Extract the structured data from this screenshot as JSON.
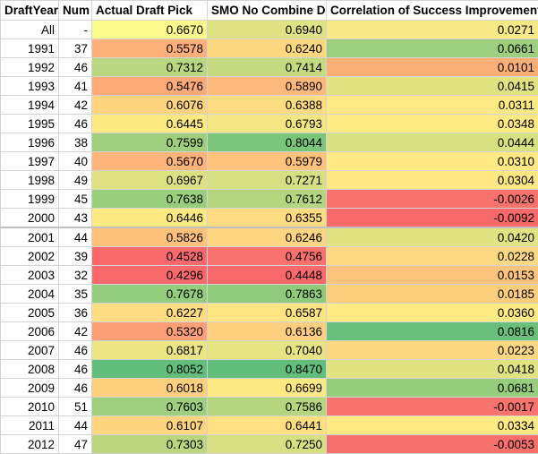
{
  "headers": [
    "DraftYear",
    "Num",
    "Actual Draft Pick",
    "SMO No Combine Data",
    "Correlation of Success Improvement"
  ],
  "rows": [
    {
      "year": "All",
      "num": "-",
      "actual": "0.6670",
      "smo": "0.6940",
      "corr": "0.0271",
      "c_actual": "#fcf98b",
      "c_smo": "#dfe383",
      "c_corr": "#f6e884"
    },
    {
      "year": "1991",
      "num": "37",
      "actual": "0.5578",
      "smo": "0.6240",
      "corr": "0.0661",
      "c_actual": "#fdaf79",
      "c_smo": "#fed880",
      "c_corr": "#9cd07e"
    },
    {
      "year": "1992",
      "num": "46",
      "actual": "0.7312",
      "smo": "0.7414",
      "corr": "0.0101",
      "c_actual": "#b9d780",
      "c_smo": "#c5da81",
      "c_corr": "#fcae79"
    },
    {
      "year": "1993",
      "num": "41",
      "actual": "0.5476",
      "smo": "0.5890",
      "corr": "0.0415",
      "c_actual": "#fcaa78",
      "c_smo": "#fcb97b",
      "c_corr": "#e1e383"
    },
    {
      "year": "1994",
      "num": "42",
      "actual": "0.6076",
      "smo": "0.6388",
      "corr": "0.0311",
      "c_actual": "#fed47f",
      "c_smo": "#fedc81",
      "c_corr": "#fdea84"
    },
    {
      "year": "1995",
      "num": "46",
      "actual": "0.6445",
      "smo": "0.6793",
      "corr": "0.0348",
      "c_actual": "#fde982",
      "c_smo": "#f4e783",
      "c_corr": "#feea83"
    },
    {
      "year": "1996",
      "num": "38",
      "actual": "0.7599",
      "smo": "0.8044",
      "corr": "0.0444",
      "c_actual": "#9dcf7e",
      "c_smo": "#7bc67b",
      "c_corr": "#d8e082"
    },
    {
      "year": "1997",
      "num": "40",
      "actual": "0.5670",
      "smo": "0.5979",
      "corr": "0.0310",
      "c_actual": "#fdb47a",
      "c_smo": "#fdc27c",
      "c_corr": "#ffe984"
    },
    {
      "year": "1998",
      "num": "49",
      "actual": "0.6967",
      "smo": "0.7271",
      "corr": "0.0304",
      "c_actual": "#dde182",
      "c_smo": "#d6df82",
      "c_corr": "#ffe883"
    },
    {
      "year": "1999",
      "num": "45",
      "actual": "0.7638",
      "smo": "0.7612",
      "corr": "-0.0026",
      "c_actual": "#99ce7d",
      "c_smo": "#b3d67f",
      "c_corr": "#f8736c"
    },
    {
      "year": "2000",
      "num": "43",
      "actual": "0.6446",
      "smo": "0.6355",
      "corr": "-0.0092",
      "c_actual": "#fde982",
      "c_smo": "#fedc81",
      "c_corr": "#f8696b"
    },
    {
      "year": "2001",
      "num": "44",
      "actual": "0.5826",
      "smo": "0.6246",
      "corr": "0.0420",
      "c_actual": "#fdc17c",
      "c_smo": "#fed580",
      "c_corr": "#e1e383"
    },
    {
      "year": "2002",
      "num": "39",
      "actual": "0.4528",
      "smo": "0.4756",
      "corr": "0.0228",
      "c_actual": "#f8696b",
      "c_smo": "#f9716d",
      "c_corr": "#fed981"
    },
    {
      "year": "2003",
      "num": "32",
      "actual": "0.4296",
      "smo": "0.4448",
      "corr": "0.0153",
      "c_actual": "#f8696b",
      "c_smo": "#f8696b",
      "c_corr": "#fdc47d"
    },
    {
      "year": "2004",
      "num": "35",
      "actual": "0.7678",
      "smo": "0.7863",
      "corr": "0.0185",
      "c_actual": "#94cd7d",
      "c_smo": "#90cb7c",
      "c_corr": "#fdcd7e"
    },
    {
      "year": "2005",
      "num": "36",
      "actual": "0.6227",
      "smo": "0.6587",
      "corr": "0.0360",
      "c_actual": "#fedc81",
      "c_smo": "#fee583",
      "c_corr": "#feea83"
    },
    {
      "year": "2006",
      "num": "42",
      "actual": "0.5320",
      "smo": "0.6136",
      "corr": "0.0816",
      "c_actual": "#fb9f76",
      "c_smo": "#fdcf7f",
      "c_corr": "#6abf7a"
    },
    {
      "year": "2007",
      "num": "46",
      "actual": "0.6817",
      "smo": "0.7040",
      "corr": "0.0223",
      "c_actual": "#ebe583",
      "c_smo": "#e6e483",
      "c_corr": "#fed881"
    },
    {
      "year": "2008",
      "num": "46",
      "actual": "0.8052",
      "smo": "0.8470",
      "corr": "0.0418",
      "c_actual": "#63be7b",
      "c_smo": "#63be7b",
      "c_corr": "#e1e383"
    },
    {
      "year": "2009",
      "num": "46",
      "actual": "0.6018",
      "smo": "0.6699",
      "corr": "0.0681",
      "c_actual": "#fed07e",
      "c_smo": "#fde983",
      "c_corr": "#95cd7d"
    },
    {
      "year": "2010",
      "num": "51",
      "actual": "0.7603",
      "smo": "0.7586",
      "corr": "-0.0017",
      "c_actual": "#9dcf7e",
      "c_smo": "#b5d67f",
      "c_corr": "#f8746c"
    },
    {
      "year": "2011",
      "num": "44",
      "actual": "0.6107",
      "smo": "0.6441",
      "corr": "0.0334",
      "c_actual": "#fed57f",
      "c_smo": "#fee082",
      "c_corr": "#fee983"
    },
    {
      "year": "2012",
      "num": "47",
      "actual": "0.7303",
      "smo": "0.7250",
      "corr": "-0.0053",
      "c_actual": "#bad780",
      "c_smo": "#d8df82",
      "c_corr": "#f8706c"
    }
  ]
}
